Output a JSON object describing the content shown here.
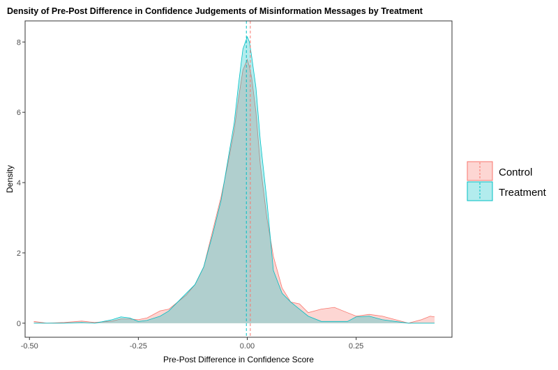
{
  "chart_data": {
    "type": "area",
    "title": "Density of Pre-Post Difference in Confidence Judgements of Misinformation Messages by Treatment",
    "xlabel": "Pre-Post Difference in Confidence Score",
    "ylabel": "Density",
    "xlim": [
      -0.51,
      0.47
    ],
    "ylim": [
      -0.4,
      8.6
    ],
    "x_ticks": [
      -0.5,
      -0.25,
      0.0,
      0.25
    ],
    "x_tick_labels": [
      "-0.50",
      "-0.25",
      "0.00",
      "0.25"
    ],
    "y_ticks": [
      0,
      2,
      4,
      6,
      8
    ],
    "y_tick_labels": [
      "0",
      "2",
      "4",
      "6",
      "8"
    ],
    "grid": false,
    "legend_position": "right",
    "series": [
      {
        "name": "Control",
        "fill": "#f8766d",
        "line": "#f8766d",
        "mean": 0.007,
        "x": [
          -0.49,
          -0.46,
          -0.42,
          -0.38,
          -0.35,
          -0.31,
          -0.29,
          -0.27,
          -0.25,
          -0.23,
          -0.2,
          -0.18,
          -0.16,
          -0.14,
          -0.12,
          -0.1,
          -0.08,
          -0.06,
          -0.045,
          -0.03,
          -0.02,
          -0.01,
          0.0,
          0.005,
          0.01,
          0.02,
          0.03,
          0.045,
          0.06,
          0.08,
          0.1,
          0.12,
          0.14,
          0.17,
          0.2,
          0.23,
          0.25,
          0.28,
          0.31,
          0.34,
          0.37,
          0.4,
          0.42,
          0.43
        ],
        "y": [
          0.05,
          0.0,
          0.02,
          0.06,
          0.02,
          0.06,
          0.12,
          0.12,
          0.1,
          0.15,
          0.35,
          0.4,
          0.6,
          0.8,
          1.1,
          1.6,
          2.6,
          3.6,
          4.5,
          5.5,
          6.4,
          7.2,
          7.5,
          7.3,
          7.0,
          6.0,
          4.5,
          3.0,
          1.9,
          1.0,
          0.6,
          0.55,
          0.3,
          0.4,
          0.45,
          0.3,
          0.2,
          0.25,
          0.2,
          0.1,
          0.0,
          0.1,
          0.2,
          0.18
        ]
      },
      {
        "name": "Treatment",
        "fill": "#00bfc4",
        "line": "#00bfc4",
        "mean": -0.002,
        "x": [
          -0.49,
          -0.46,
          -0.42,
          -0.38,
          -0.35,
          -0.31,
          -0.29,
          -0.27,
          -0.25,
          -0.23,
          -0.2,
          -0.18,
          -0.16,
          -0.14,
          -0.12,
          -0.1,
          -0.08,
          -0.06,
          -0.045,
          -0.03,
          -0.02,
          -0.01,
          0.0,
          0.005,
          0.01,
          0.02,
          0.03,
          0.045,
          0.06,
          0.08,
          0.1,
          0.12,
          0.14,
          0.17,
          0.2,
          0.23,
          0.25,
          0.28,
          0.31,
          0.34,
          0.37,
          0.4,
          0.42,
          0.43
        ],
        "y": [
          0.0,
          0.0,
          0.0,
          0.02,
          0.0,
          0.1,
          0.18,
          0.15,
          0.05,
          0.08,
          0.2,
          0.35,
          0.6,
          0.85,
          1.1,
          1.6,
          2.5,
          3.5,
          4.6,
          5.7,
          6.8,
          7.8,
          8.15,
          8.0,
          7.6,
          6.7,
          5.2,
          3.5,
          1.5,
          0.85,
          0.6,
          0.4,
          0.2,
          0.05,
          0.05,
          0.05,
          0.18,
          0.2,
          0.1,
          0.05,
          0.0,
          0.0,
          0.0,
          0.0
        ]
      }
    ]
  }
}
